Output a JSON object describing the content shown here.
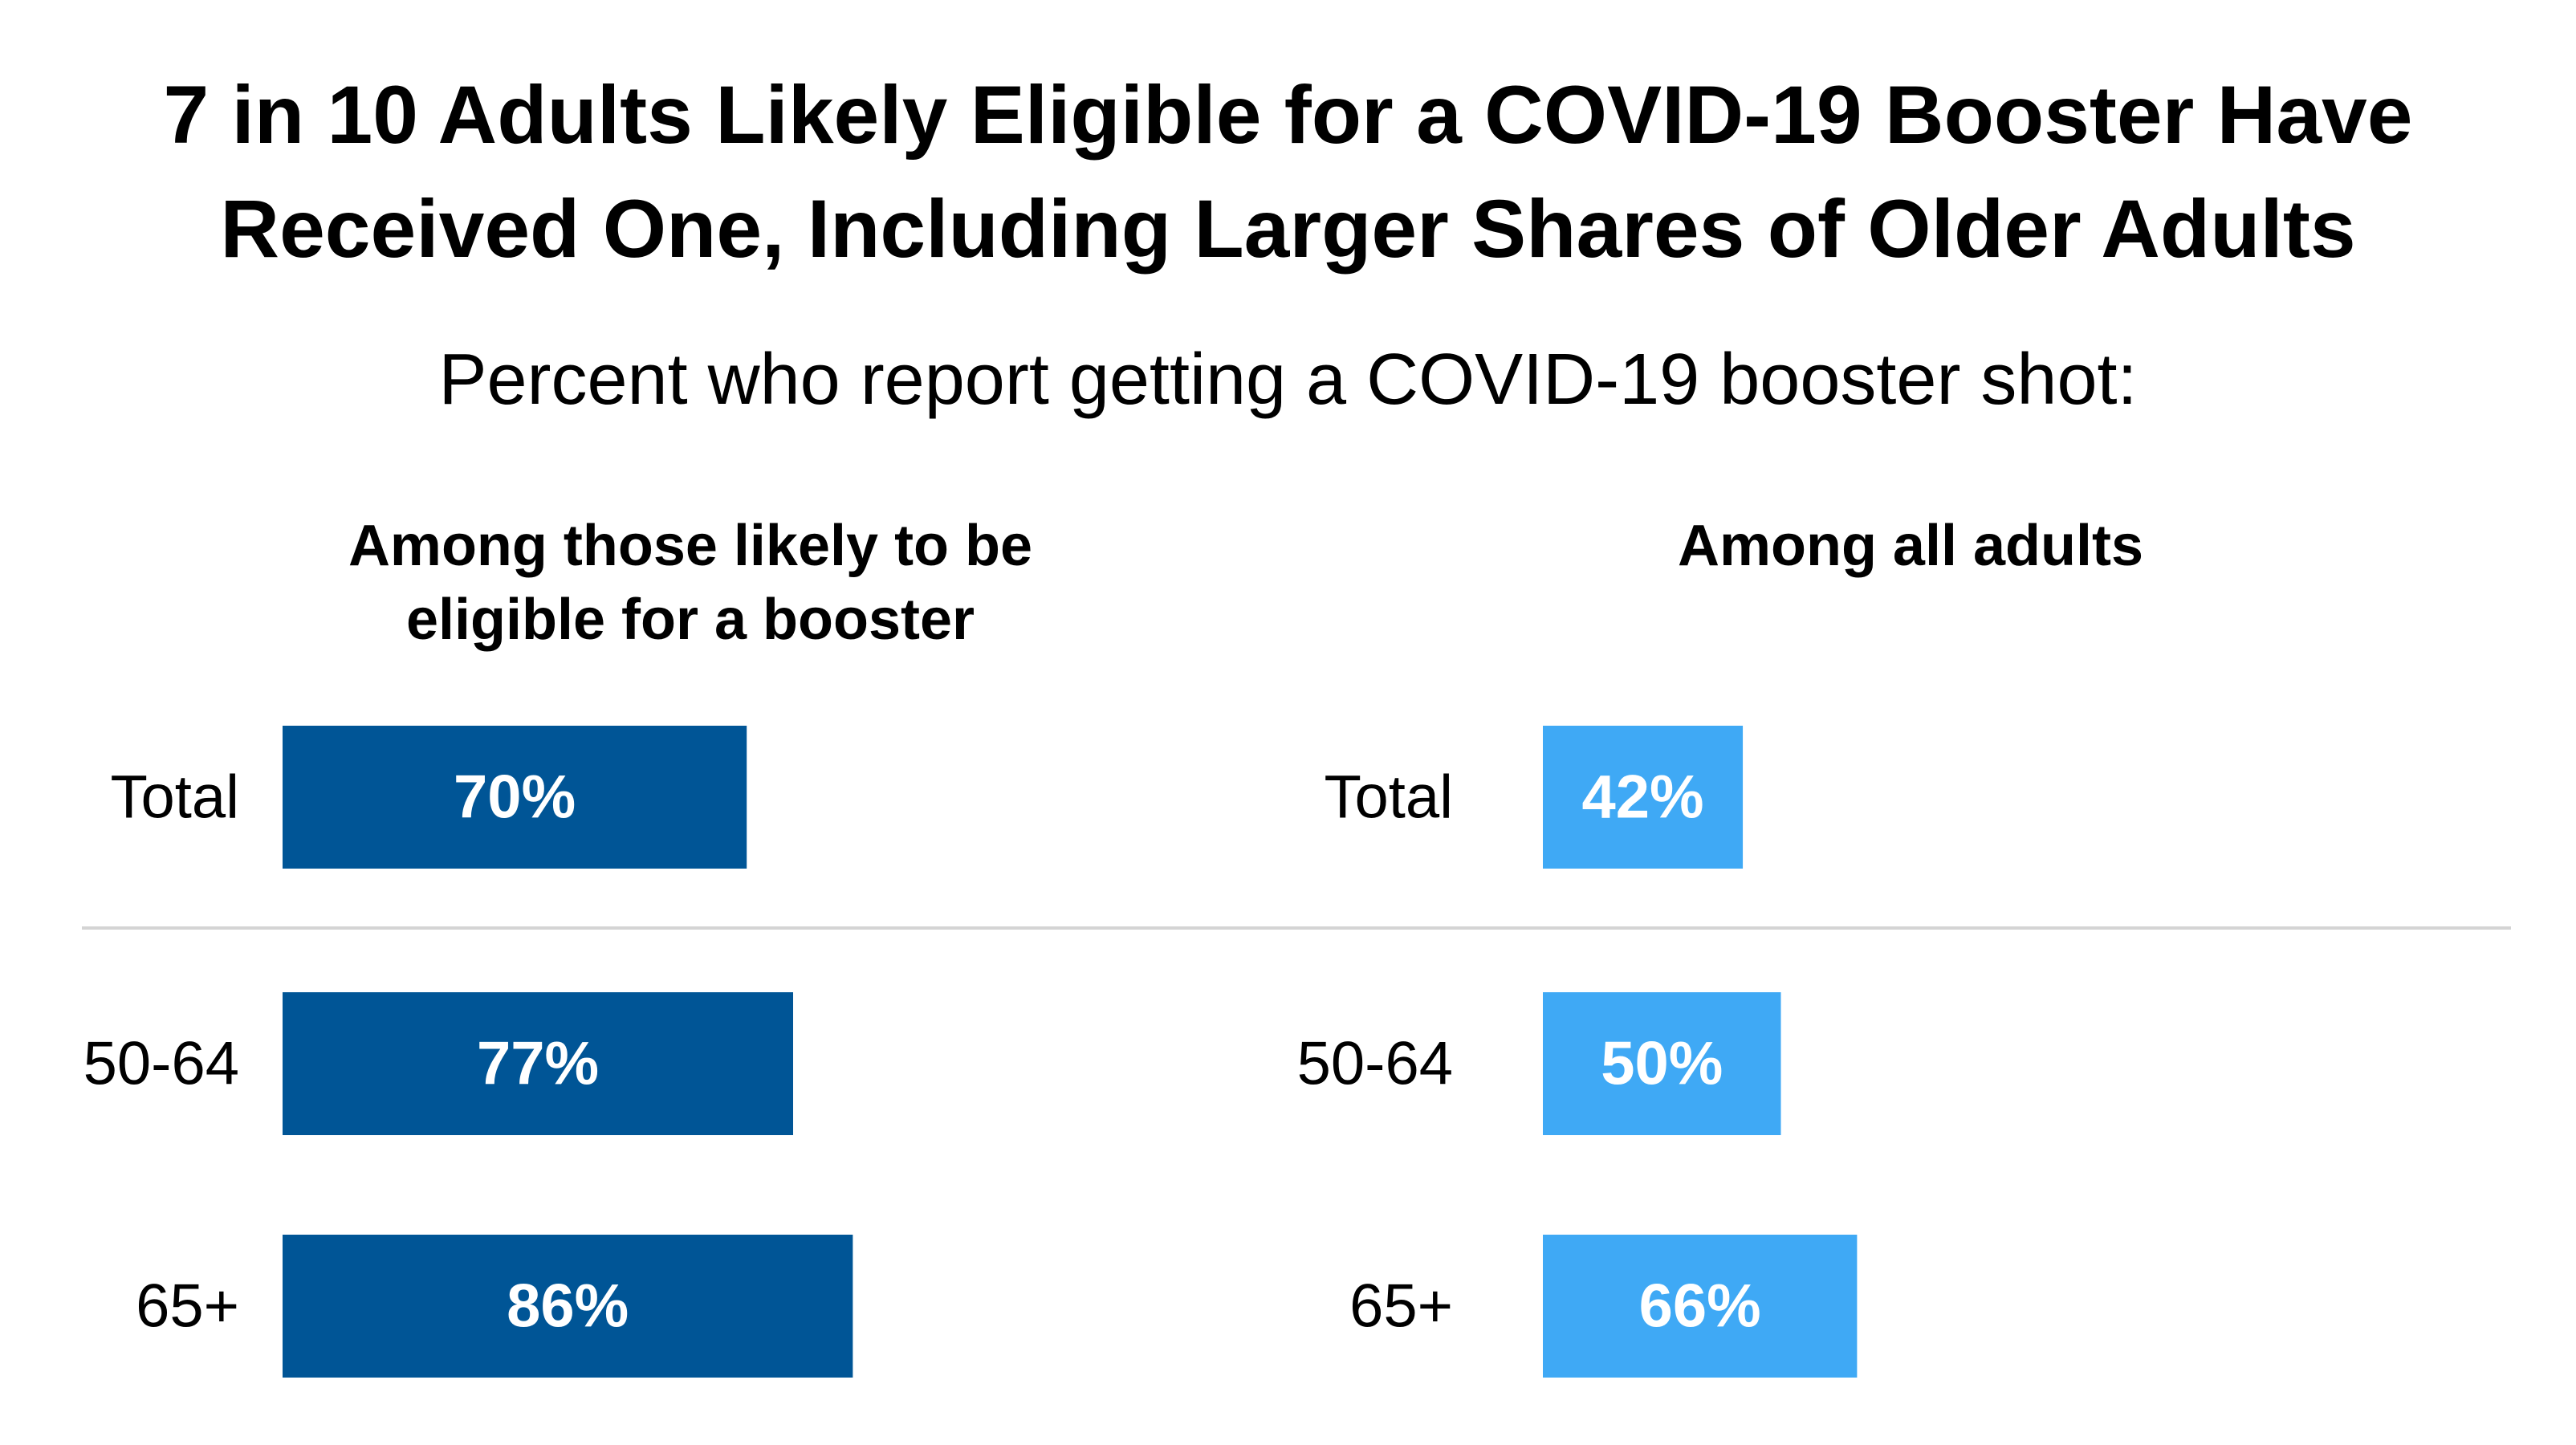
{
  "title_lines": [
    "7 in 10 Adults Likely Eligible for a COVID-19 Booster Have",
    "Received One, Including Larger Shares of Older Adults"
  ],
  "subtitle": "Percent who report getting a COVID-19 booster shot:",
  "colors": {
    "eligible_bar": "#005596",
    "all_adults_bar": "#3fa9f5",
    "divider": "#d4d4d4",
    "bar_label": "#ffffff",
    "text": "#000000"
  },
  "chart_data": [
    {
      "type": "bar",
      "orientation": "horizontal",
      "title_lines": [
        "Among those likely to be",
        "eligible for a booster"
      ],
      "categories": [
        "Total",
        "50-64",
        "65+"
      ],
      "values": [
        70,
        77,
        86
      ],
      "labels": [
        "70%",
        "77%",
        "86%"
      ],
      "xlim": [
        0,
        100
      ]
    },
    {
      "type": "bar",
      "orientation": "horizontal",
      "title_lines": [
        "Among all adults"
      ],
      "categories": [
        "Total",
        "50-64",
        "65+"
      ],
      "values": [
        42,
        50,
        66
      ],
      "labels": [
        "42%",
        "50%",
        "66%"
      ],
      "xlim": [
        0,
        100
      ]
    }
  ]
}
